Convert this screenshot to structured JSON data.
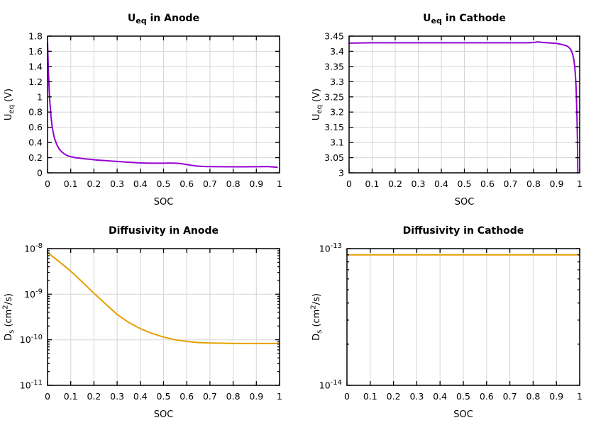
{
  "figure": {
    "background": "#ffffff",
    "grid_color": "#d6d6d6",
    "axis_color": "#000000",
    "text_color": "#000000"
  },
  "chart_data": [
    {
      "id": "ueq-anode",
      "type": "line",
      "title": "U_eq in Anode",
      "title_segments": [
        {
          "t": "U"
        },
        {
          "t": "eq",
          "sub": true
        },
        {
          "t": " in Anode"
        }
      ],
      "xlabel": "SOC",
      "ylabel": "U_eq (V)",
      "ylabel_segments": [
        {
          "t": "U"
        },
        {
          "t": "eq",
          "sub": true
        },
        {
          "t": " (V)"
        }
      ],
      "line_color": "#9400d3",
      "xscale": "linear",
      "yscale": "linear",
      "xlim": [
        0,
        1
      ],
      "ylim": [
        0,
        1.8
      ],
      "grid": true,
      "xticks": {
        "values": [
          0,
          0.1,
          0.2,
          0.3,
          0.4,
          0.5,
          0.6,
          0.7,
          0.8,
          0.9,
          1
        ],
        "labels": [
          "0",
          "0.1",
          "0.2",
          "0.3",
          "0.4",
          "0.5",
          "0.6",
          "0.7",
          "0.8",
          "0.9",
          "1"
        ]
      },
      "yticks": {
        "values": [
          0,
          0.2,
          0.4,
          0.6,
          0.8,
          1,
          1.2,
          1.4,
          1.6,
          1.8
        ],
        "labels": [
          "0",
          "0.2",
          "0.4",
          "0.6",
          "0.8",
          "1",
          "1.2",
          "1.4",
          "1.6",
          "1.8"
        ]
      },
      "x": [
        0,
        0.002,
        0.004,
        0.006,
        0.008,
        0.01,
        0.015,
        0.02,
        0.025,
        0.03,
        0.04,
        0.05,
        0.06,
        0.07,
        0.08,
        0.09,
        0.1,
        0.12,
        0.14,
        0.16,
        0.18,
        0.2,
        0.22,
        0.25,
        0.28,
        0.3,
        0.33,
        0.36,
        0.38,
        0.4,
        0.42,
        0.45,
        0.48,
        0.5,
        0.52,
        0.54,
        0.56,
        0.58,
        0.6,
        0.62,
        0.64,
        0.66,
        0.68,
        0.7,
        0.75,
        0.8,
        0.85,
        0.9,
        0.93,
        0.95,
        0.97,
        0.99
      ],
      "y": [
        1.72,
        1.5,
        1.32,
        1.17,
        1.04,
        0.93,
        0.74,
        0.61,
        0.52,
        0.455,
        0.37,
        0.315,
        0.28,
        0.255,
        0.235,
        0.222,
        0.213,
        0.2,
        0.192,
        0.185,
        0.179,
        0.173,
        0.167,
        0.16,
        0.154,
        0.15,
        0.144,
        0.138,
        0.134,
        0.131,
        0.129,
        0.127,
        0.127,
        0.127,
        0.128,
        0.129,
        0.126,
        0.118,
        0.109,
        0.099,
        0.091,
        0.086,
        0.083,
        0.082,
        0.08,
        0.079,
        0.079,
        0.08,
        0.081,
        0.081,
        0.078,
        0.072
      ]
    },
    {
      "id": "ueq-cathode",
      "type": "line",
      "title": "U_eq in Cathode",
      "title_segments": [
        {
          "t": "U"
        },
        {
          "t": "eq",
          "sub": true
        },
        {
          "t": " in Cathode"
        }
      ],
      "xlabel": "SOC",
      "ylabel": "U_eq (V)",
      "ylabel_segments": [
        {
          "t": "U"
        },
        {
          "t": "eq",
          "sub": true
        },
        {
          "t": " (V)"
        }
      ],
      "line_color": "#9400d3",
      "xscale": "linear",
      "yscale": "linear",
      "xlim": [
        0,
        1
      ],
      "ylim": [
        3,
        3.45
      ],
      "grid": true,
      "xticks": {
        "values": [
          0,
          0.1,
          0.2,
          0.3,
          0.4,
          0.5,
          0.6,
          0.7,
          0.8,
          0.9,
          1
        ],
        "labels": [
          "0",
          "0.1",
          "0.2",
          "0.3",
          "0.4",
          "0.5",
          "0.6",
          "0.7",
          "0.8",
          "0.9",
          "1"
        ]
      },
      "yticks": {
        "values": [
          3,
          3.05,
          3.1,
          3.15,
          3.2,
          3.25,
          3.3,
          3.35,
          3.4,
          3.45
        ],
        "labels": [
          "3",
          "3.05",
          "3.1",
          "3.15",
          "3.2",
          "3.25",
          "3.3",
          "3.35",
          "3.4",
          "3.45"
        ]
      },
      "x": [
        0,
        0.1,
        0.2,
        0.3,
        0.4,
        0.5,
        0.6,
        0.7,
        0.78,
        0.8,
        0.82,
        0.84,
        0.86,
        0.88,
        0.9,
        0.92,
        0.94,
        0.95,
        0.96,
        0.965,
        0.97,
        0.975,
        0.978,
        0.981,
        0.984,
        0.986,
        0.988,
        0.99,
        0.991,
        0.992
      ],
      "y": [
        3.427,
        3.428,
        3.428,
        3.428,
        3.428,
        3.428,
        3.428,
        3.428,
        3.428,
        3.429,
        3.431,
        3.429,
        3.428,
        3.427,
        3.426,
        3.423,
        3.419,
        3.415,
        3.407,
        3.4,
        3.389,
        3.371,
        3.354,
        3.328,
        3.288,
        3.248,
        3.19,
        3.115,
        3.06,
        3.0
      ]
    },
    {
      "id": "diff-anode",
      "type": "line",
      "title": "Diffusivity in Anode",
      "title_segments": [
        {
          "t": "Diffusivity in Anode"
        }
      ],
      "xlabel": "SOC",
      "ylabel": "D_s (cm^2/s)",
      "ylabel_segments": [
        {
          "t": "D"
        },
        {
          "t": "s",
          "sub": true
        },
        {
          "t": " (cm"
        },
        {
          "t": "2",
          "sup": true
        },
        {
          "t": "/s)"
        }
      ],
      "line_color": "#e69f00",
      "xscale": "linear",
      "yscale": "log",
      "xlim": [
        0,
        1
      ],
      "ylim": [
        1e-11,
        1e-08
      ],
      "grid": true,
      "xticks": {
        "values": [
          0,
          0.1,
          0.2,
          0.3,
          0.4,
          0.5,
          0.6,
          0.7,
          0.8,
          0.9,
          1
        ],
        "labels": [
          "0",
          "0.1",
          "0.2",
          "0.3",
          "0.4",
          "0.5",
          "0.6",
          "0.7",
          "0.8",
          "0.9",
          "1"
        ]
      },
      "yticks": {
        "values": [
          1e-11,
          1e-10,
          1e-09,
          1e-08
        ],
        "labels": [
          [
            {
              "t": "10"
            },
            {
              "t": "-11",
              "sup": true
            }
          ],
          [
            {
              "t": "10"
            },
            {
              "t": "-10",
              "sup": true
            }
          ],
          [
            {
              "t": "10"
            },
            {
              "t": "-9",
              "sup": true
            }
          ],
          [
            {
              "t": "10"
            },
            {
              "t": "-8",
              "sup": true
            }
          ]
        ]
      },
      "x": [
        0,
        0.05,
        0.1,
        0.15,
        0.2,
        0.25,
        0.3,
        0.35,
        0.4,
        0.45,
        0.5,
        0.55,
        0.6,
        0.65,
        0.7,
        0.75,
        0.8,
        0.85,
        0.9,
        0.95,
        1
      ],
      "y": [
        8.2e-09,
        5.2e-09,
        3.2e-09,
        1.85e-09,
        1.05e-09,
        6.1e-10,
        3.6e-10,
        2.4e-10,
        1.75e-10,
        1.38e-10,
        1.15e-10,
        1e-10,
        9.2e-11,
        8.7e-11,
        8.5e-11,
        8.4e-11,
        8.3e-11,
        8.3e-11,
        8.3e-11,
        8.3e-11,
        8.3e-11
      ]
    },
    {
      "id": "diff-cathode",
      "type": "line",
      "title": "Diffusivity in Cathode",
      "title_segments": [
        {
          "t": "Diffusivity in Cathode"
        }
      ],
      "xlabel": "SOC",
      "ylabel": "D_s (cm^2/s)",
      "ylabel_segments": [
        {
          "t": "D"
        },
        {
          "t": "s",
          "sub": true
        },
        {
          "t": " (cm"
        },
        {
          "t": "2",
          "sup": true
        },
        {
          "t": "/s)"
        }
      ],
      "line_color": "#e69f00",
      "xscale": "linear",
      "yscale": "log",
      "xlim": [
        0,
        1
      ],
      "ylim": [
        1e-14,
        1e-13
      ],
      "grid": true,
      "xticks": {
        "values": [
          0,
          0.1,
          0.2,
          0.3,
          0.4,
          0.5,
          0.6,
          0.7,
          0.8,
          0.9,
          1
        ],
        "labels": [
          "0",
          "0.1",
          "0.2",
          "0.3",
          "0.4",
          "0.5",
          "0.6",
          "0.7",
          "0.8",
          "0.9",
          "1"
        ]
      },
      "yticks": {
        "values": [
          1e-14,
          1e-13
        ],
        "labels": [
          [
            {
              "t": "10"
            },
            {
              "t": "-14",
              "sup": true
            }
          ],
          [
            {
              "t": "10"
            },
            {
              "t": "-13",
              "sup": true
            }
          ]
        ]
      },
      "x": [
        0,
        0.25,
        0.5,
        0.75,
        1
      ],
      "y": [
        9e-14,
        9e-14,
        9e-14,
        9e-14,
        9e-14
      ]
    }
  ]
}
